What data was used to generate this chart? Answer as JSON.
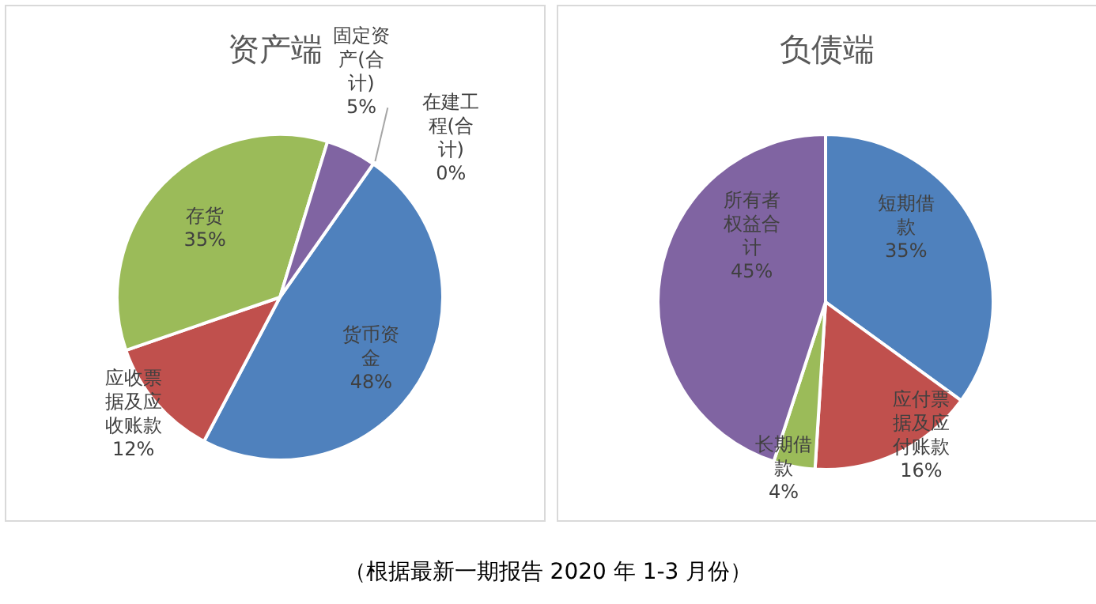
{
  "chart_data": [
    {
      "type": "pie",
      "title": "资产端",
      "categories": [
        "货币资金",
        "应收票据及应收账款",
        "存货",
        "固定资产(合计)",
        "在建工程(合计)"
      ],
      "values": [
        48,
        12,
        35,
        5,
        0
      ],
      "value_labels": [
        "48%",
        "12%",
        "35%",
        "5%",
        "0%"
      ],
      "colors": [
        "#4f81bd",
        "#c0504d",
        "#9bbb59",
        "#8064a2",
        "#4bacc6"
      ],
      "legend": false,
      "annotations": [
        "（根据最新一期报告 2020 年 1-3 月份）"
      ]
    },
    {
      "type": "pie",
      "title": "负债端",
      "categories": [
        "短期借款",
        "应付票据及应付账款",
        "长期借款",
        "所有者权益合计"
      ],
      "values": [
        35,
        16,
        4,
        45
      ],
      "value_labels": [
        "35%",
        "16%",
        "4%",
        "45%"
      ],
      "colors": [
        "#4f81bd",
        "#c0504d",
        "#9bbb59",
        "#8064a2"
      ],
      "legend": false
    }
  ]
}
